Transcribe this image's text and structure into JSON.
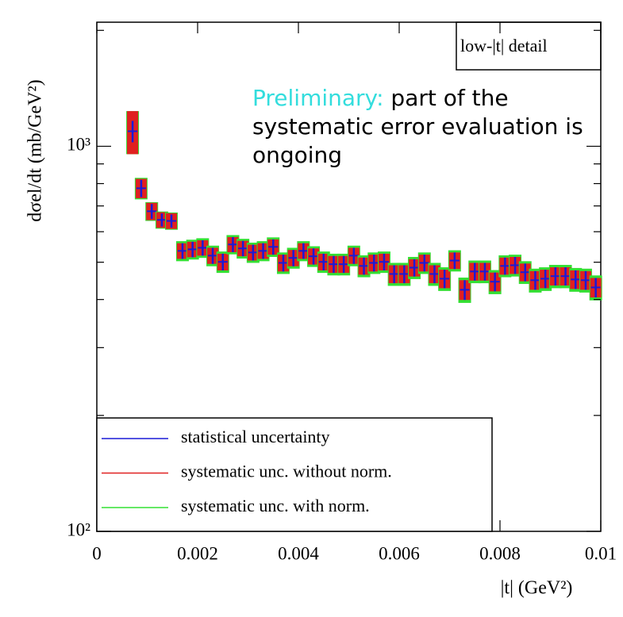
{
  "chart_data": {
    "type": "errorbox",
    "x_label": "|t|   (GeV²)",
    "y_label": "dσel/dt   (mb/GeV²)",
    "panel_label": "low-|t| detail",
    "annotation": {
      "highlight": "Preliminary:",
      "text": "part of the systematic error evaluation is ongoing"
    },
    "log_y": true,
    "xlim": [
      0,
      0.01
    ],
    "xticks": [
      0,
      0.002,
      0.004,
      0.006,
      0.008,
      0.01
    ],
    "ylim": [
      100,
      2100
    ],
    "yticks": [
      {
        "value": 100,
        "label": "10²"
      },
      {
        "value": 1000,
        "label": "10³"
      }
    ],
    "yminor_ticks": [
      200,
      300,
      400,
      500,
      600,
      700,
      800,
      900,
      2000
    ],
    "legend": "lower left",
    "x": [
      0.00071,
      0.00088,
      0.00109,
      0.00129,
      0.00148,
      0.0017,
      0.0019,
      0.0021,
      0.0023,
      0.0025,
      0.0027,
      0.0029,
      0.0031,
      0.0033,
      0.0035,
      0.0037,
      0.0039,
      0.0041,
      0.0043,
      0.0045,
      0.0047,
      0.0049,
      0.0051,
      0.0053,
      0.0055,
      0.0057,
      0.0059,
      0.0061,
      0.0063,
      0.0065,
      0.0067,
      0.0069,
      0.0071,
      0.0073,
      0.0075,
      0.0077,
      0.0079,
      0.0081,
      0.0083,
      0.0085,
      0.0087,
      0.0089,
      0.0091,
      0.0093,
      0.0095,
      0.0097,
      0.0099
    ],
    "values": [
      1094,
      778,
      678,
      644,
      640,
      535,
      540,
      545,
      520,
      501,
      556,
      543,
      530,
      535,
      548,
      498,
      513,
      535,
      518,
      501,
      494,
      494,
      520,
      489,
      498,
      501,
      466,
      466,
      484,
      498,
      466,
      453,
      505,
      424,
      473,
      473,
      445,
      489,
      491,
      471,
      449,
      453,
      460,
      460,
      451,
      449,
      430
    ],
    "series": [
      {
        "name": "statistical uncertainty",
        "color": "#1a1ad6",
        "errors": [
          70,
          40,
          30,
          25,
          25,
          25,
          25,
          25,
          25,
          25,
          25,
          25,
          25,
          25,
          25,
          25,
          25,
          25,
          25,
          25,
          25,
          25,
          25,
          25,
          25,
          25,
          25,
          25,
          25,
          25,
          25,
          25,
          25,
          25,
          25,
          25,
          25,
          25,
          25,
          25,
          25,
          25,
          25,
          25,
          25,
          25,
          25
        ]
      },
      {
        "name": "systematic unc. without norm.",
        "color": "#e02020",
        "errors": [
          140,
          45,
          35,
          30,
          30,
          25,
          25,
          25,
          25,
          25,
          25,
          25,
          25,
          25,
          25,
          25,
          25,
          25,
          25,
          25,
          25,
          25,
          25,
          25,
          25,
          25,
          25,
          25,
          25,
          25,
          25,
          25,
          25,
          25,
          25,
          25,
          25,
          25,
          25,
          25,
          25,
          25,
          25,
          25,
          25,
          25,
          25
        ]
      },
      {
        "name": "systematic unc. with norm.",
        "color": "#33e033",
        "errors": [
          140,
          50,
          38,
          33,
          33,
          32,
          32,
          32,
          32,
          32,
          32,
          32,
          32,
          32,
          32,
          32,
          32,
          32,
          32,
          32,
          32,
          32,
          32,
          32,
          32,
          32,
          32,
          32,
          32,
          32,
          32,
          32,
          32,
          32,
          32,
          32,
          32,
          32,
          32,
          32,
          32,
          32,
          32,
          32,
          32,
          32,
          32
        ]
      }
    ]
  }
}
